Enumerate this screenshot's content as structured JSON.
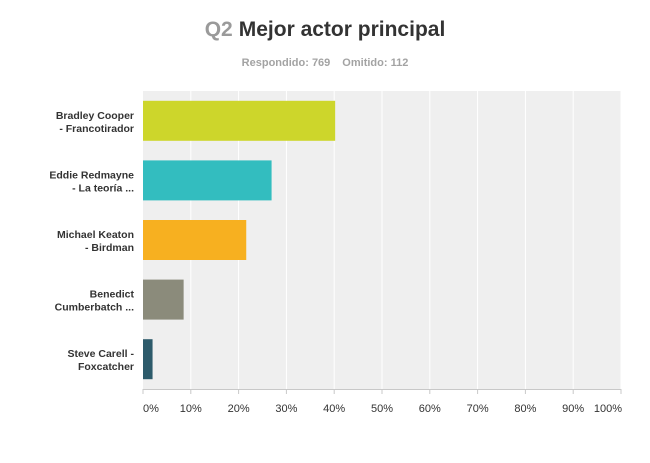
{
  "header": {
    "question_id": "Q2",
    "title": "Mejor actor principal",
    "answered_label": "Respondido: 769",
    "skipped_label": "Omitido: 112"
  },
  "chart_data": {
    "type": "bar",
    "orientation": "horizontal",
    "title": "Q2 Mejor actor principal",
    "categories": [
      "Bradley Cooper - Francotirador",
      "Eddie Redmayne - La teoría ...",
      "Michael Keaton - Birdman",
      "Benedict Cumberbatch ...",
      "Steve Carell - Foxcatcher"
    ],
    "category_lines": [
      [
        "Bradley Cooper",
        "- Francotirador"
      ],
      [
        "Eddie Redmayne",
        "- La teoría ..."
      ],
      [
        "Michael Keaton",
        "- Birdman"
      ],
      [
        "Benedict",
        "Cumberbatch ..."
      ],
      [
        "Steve Carell -",
        "Foxcatcher"
      ]
    ],
    "values": [
      40.2,
      26.9,
      21.6,
      8.5,
      2.0
    ],
    "colors": [
      "#cdd62b",
      "#33bdbf",
      "#f7b020",
      "#8b8b7b",
      "#2d5b6b"
    ],
    "xlim": [
      0,
      100
    ],
    "ticks": [
      0,
      10,
      20,
      30,
      40,
      50,
      60,
      70,
      80,
      90,
      100
    ],
    "tick_labels": [
      "0%",
      "10%",
      "20%",
      "30%",
      "40%",
      "50%",
      "60%",
      "70%",
      "80%",
      "90%",
      "100%"
    ],
    "grid": true,
    "xlabel": "",
    "ylabel": ""
  }
}
